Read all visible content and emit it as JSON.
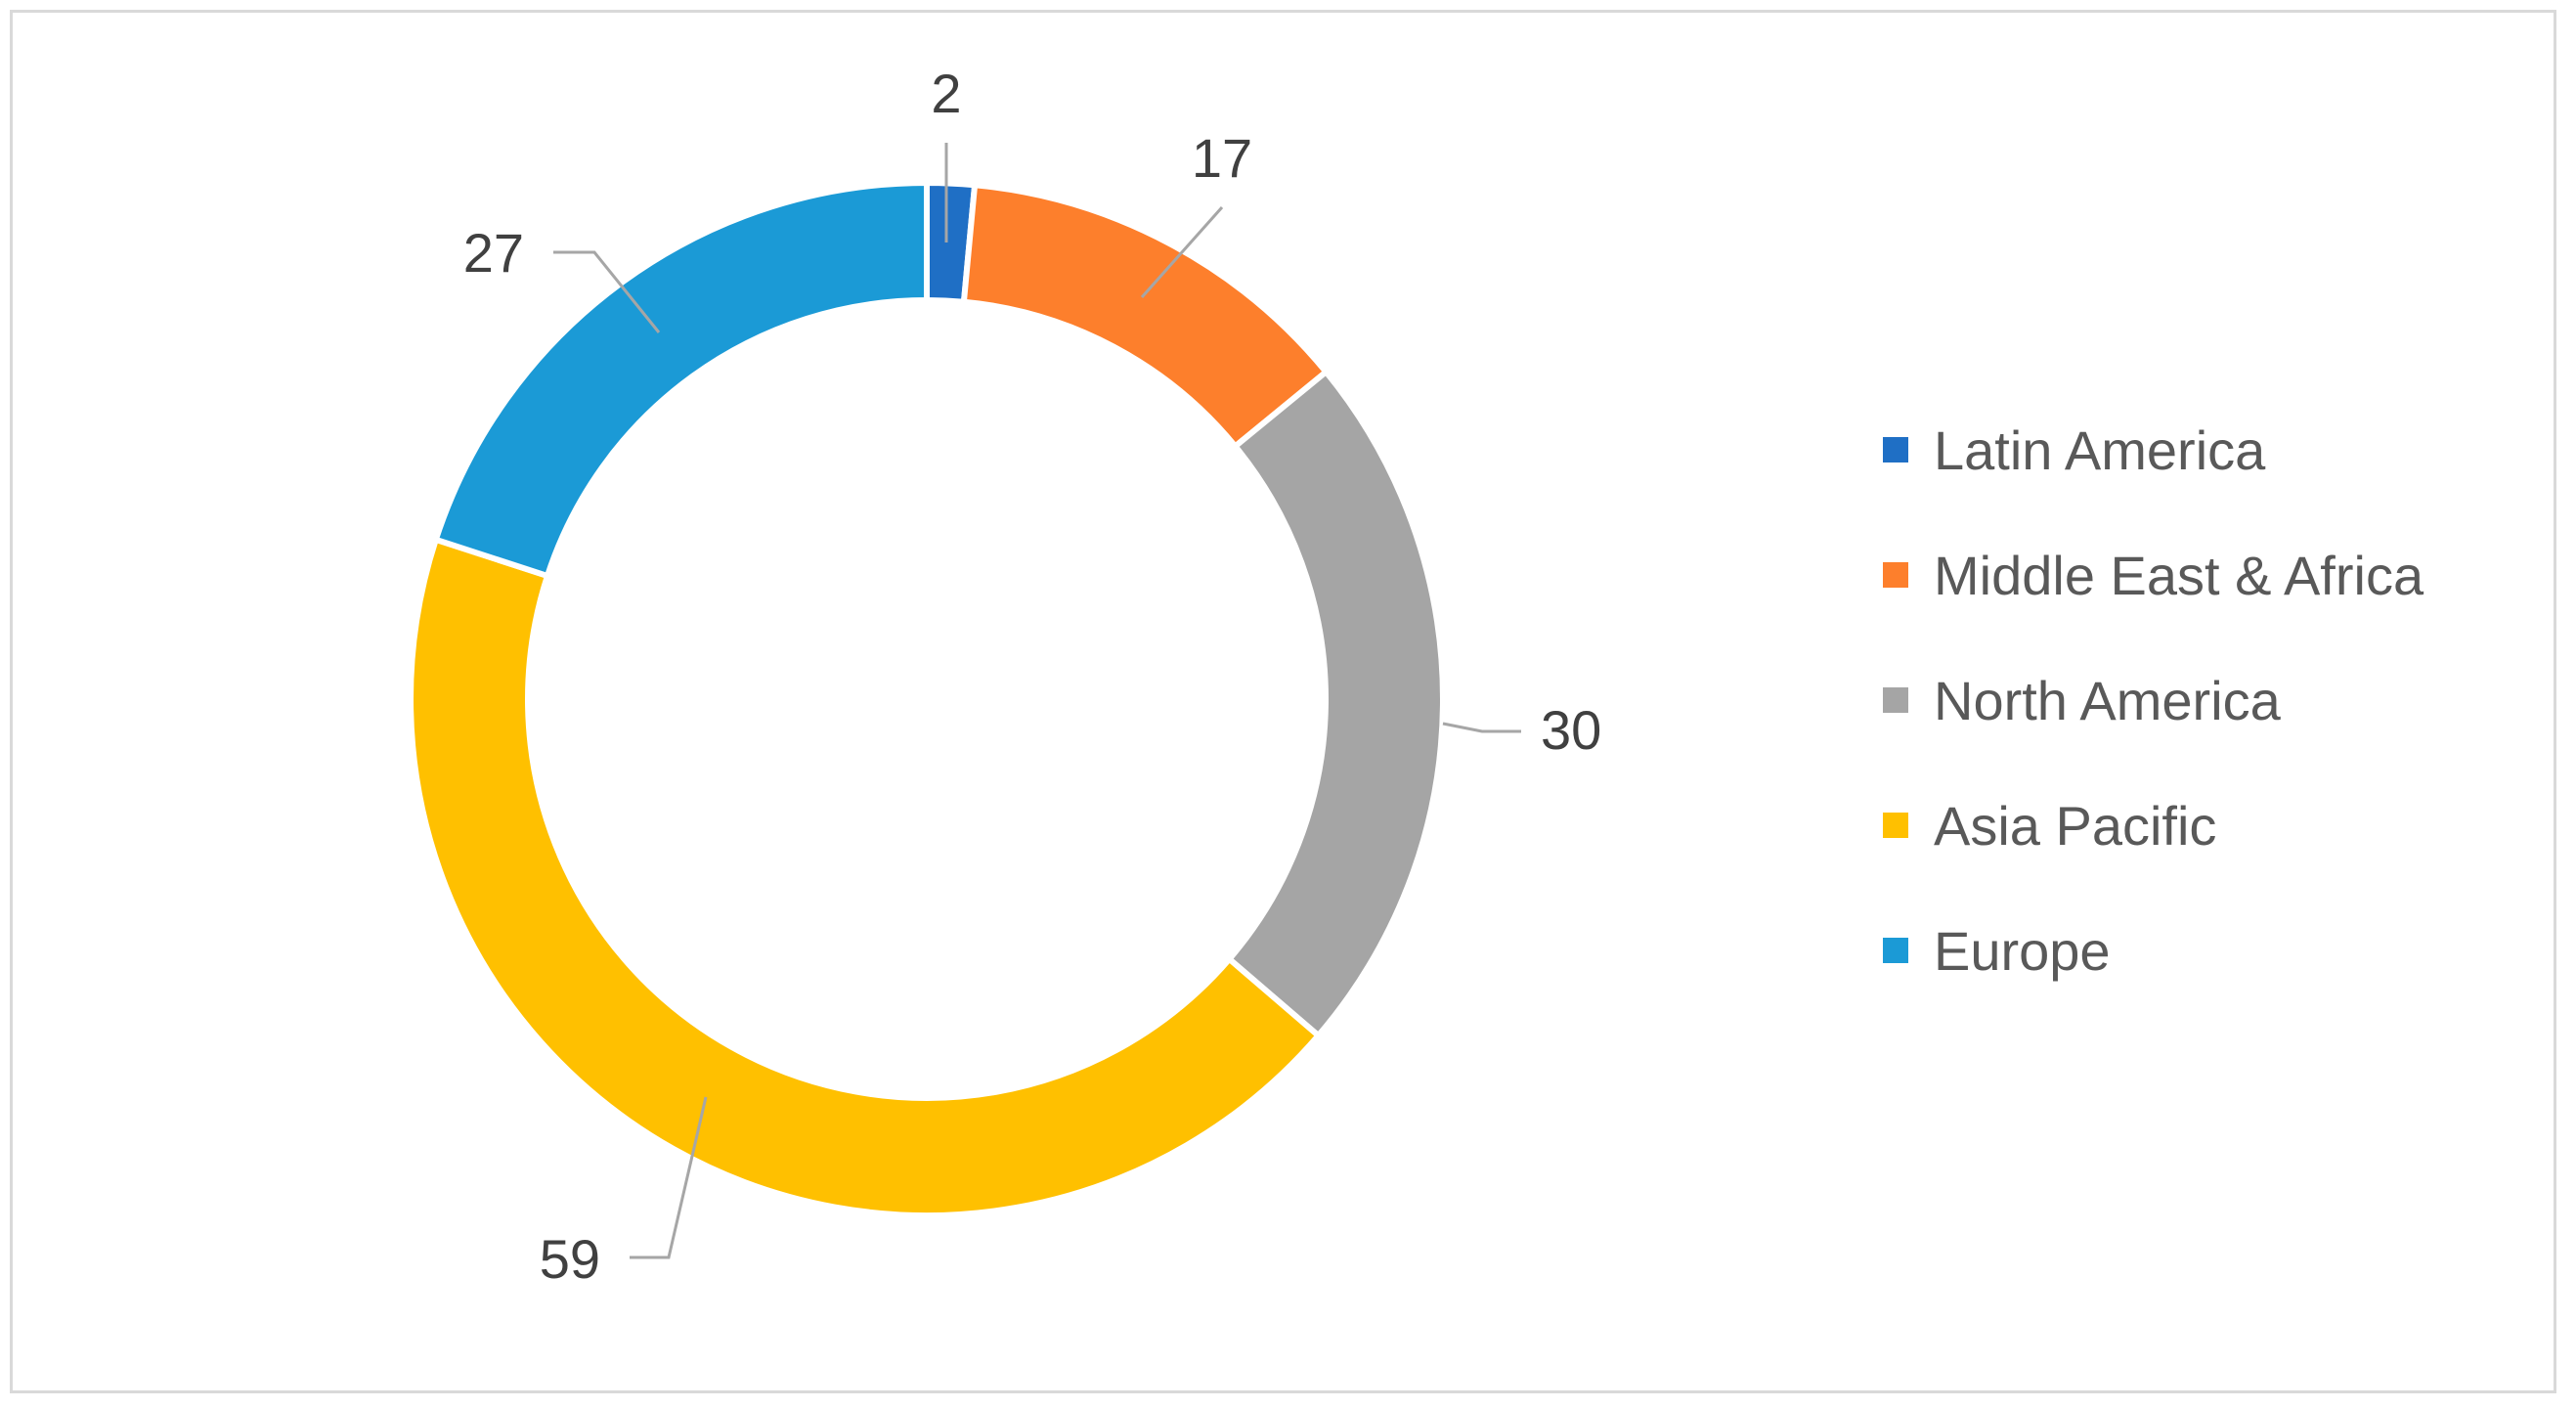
{
  "chart_data": {
    "type": "pie",
    "variant": "doughnut",
    "title": "",
    "categories": [
      "Latin America",
      "Middle East & Africa",
      "North America",
      "Asia Pacific",
      "Europe"
    ],
    "values": [
      2,
      17,
      30,
      59,
      27
    ],
    "colors": [
      "#1f6fc5",
      "#fd7f2c",
      "#a5a5a5",
      "#ffc000",
      "#1b9ad6"
    ],
    "data_labels": [
      "2",
      "17",
      "30",
      "59",
      "27"
    ],
    "legend_position": "right",
    "start_angle_deg": 0,
    "direction": "clockwise"
  }
}
